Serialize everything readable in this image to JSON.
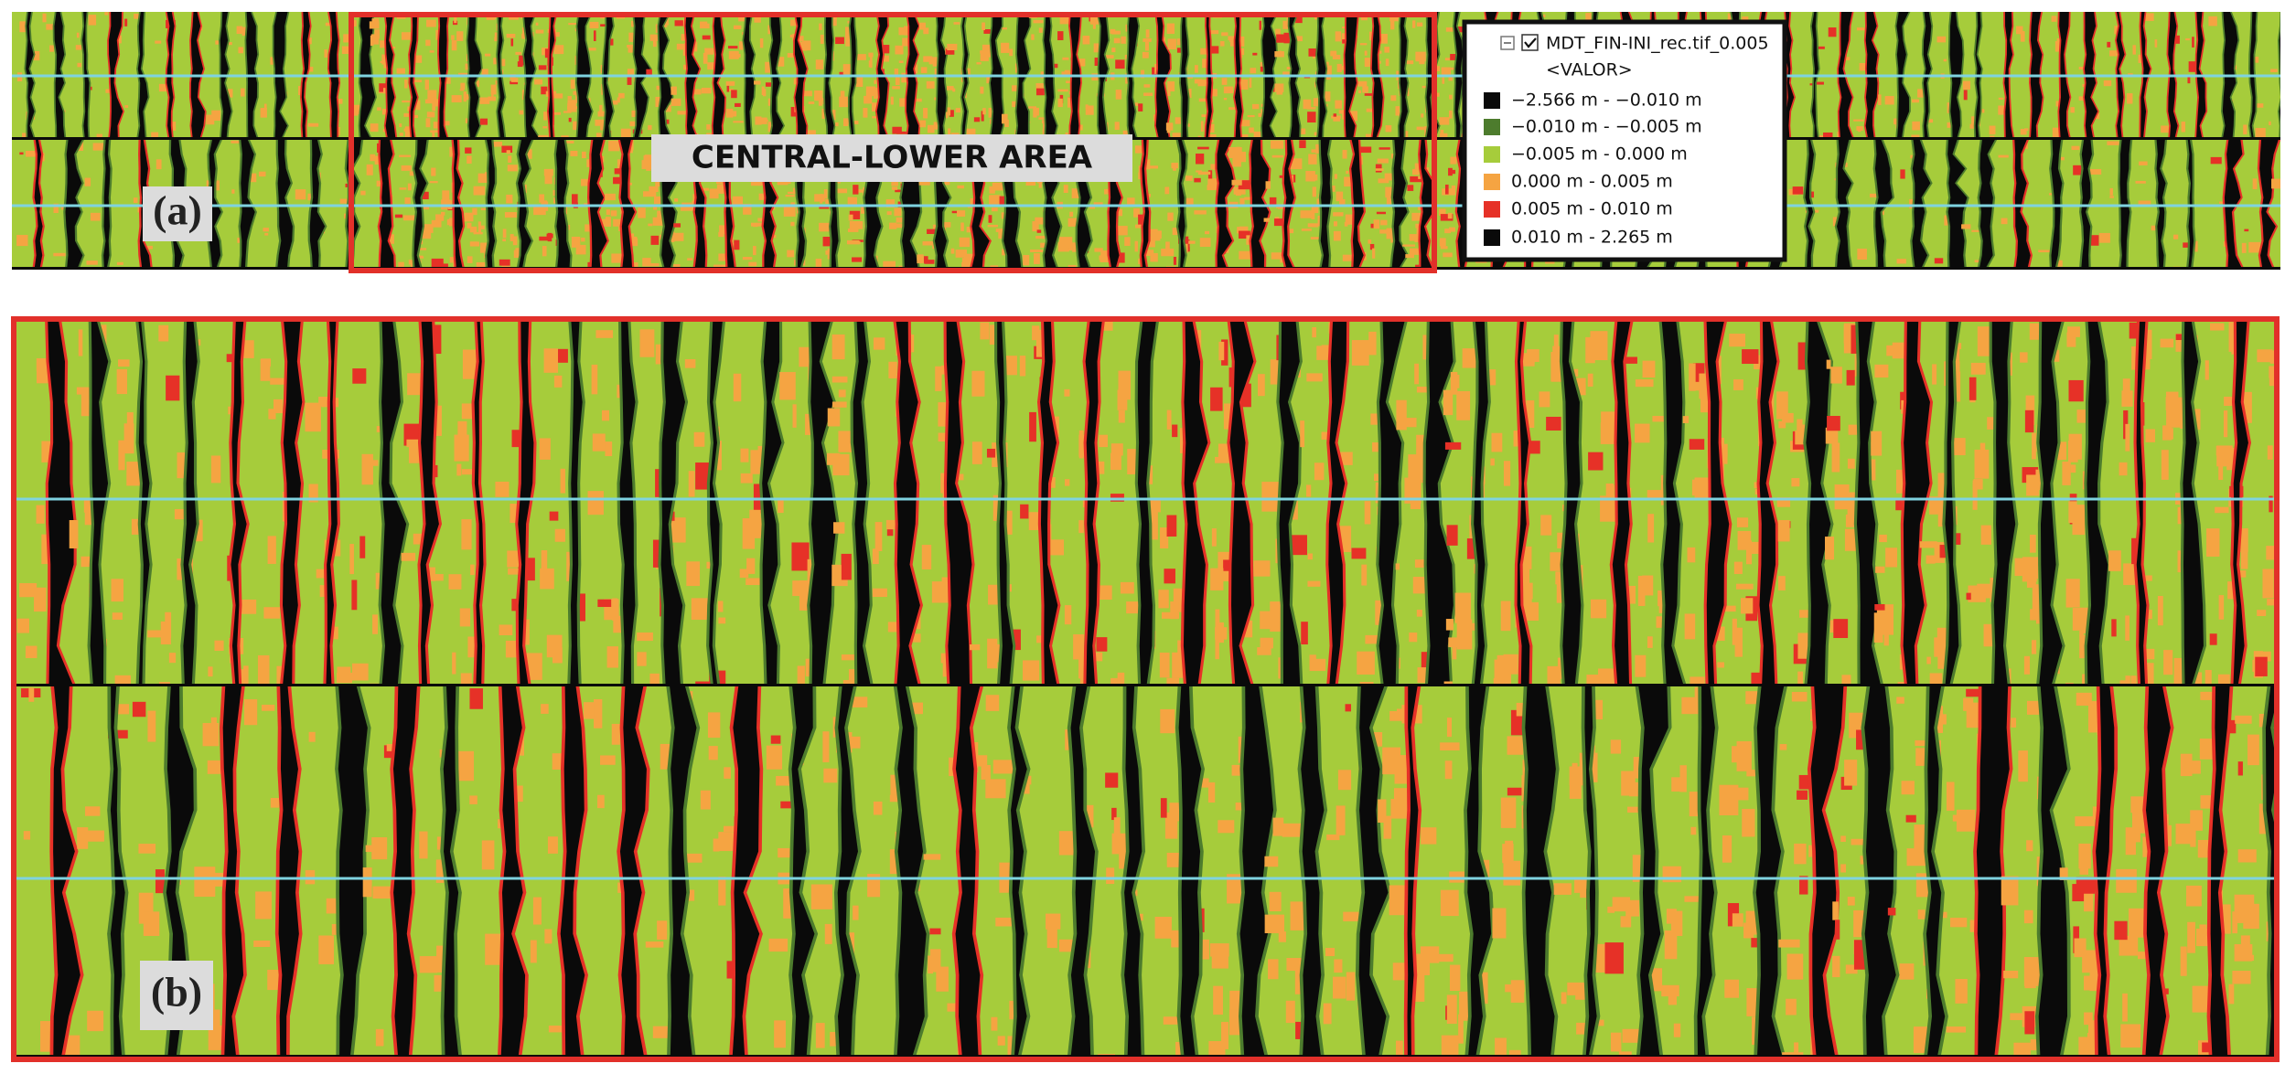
{
  "panels": {
    "a": {
      "label": "(a)",
      "area_label": "CENTRAL-LOWER  AREA"
    },
    "b": {
      "label": "(b)"
    }
  },
  "legend": {
    "title": "MDT_FIN-INI_rec.tif_0.005",
    "field": "<VALOR>",
    "items": [
      {
        "label": "−2.566 m  -  −0.010 m",
        "color": "#0a0a0a"
      },
      {
        "label": "−0.010 m  -  −0.005 m",
        "color": "#4d7c2d"
      },
      {
        "label": "−0.005 m  -   0.000 m",
        "color": "#a6cc3b"
      },
      {
        "label": "0.000 m  -   0.005 m",
        "color": "#f5a442"
      },
      {
        "label": "0.005 m  -   0.010 m",
        "color": "#e63127"
      },
      {
        "label": "0.010 m  -   2.265 m",
        "color": "#0a0a0a"
      }
    ]
  }
}
